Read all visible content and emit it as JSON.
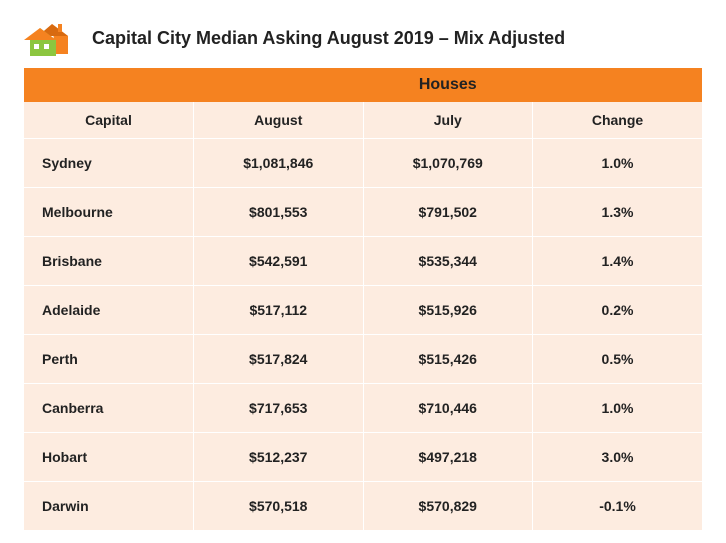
{
  "title": "Capital City Median Asking August 2019 – Mix Adjusted",
  "table": {
    "type": "table",
    "super_header": "Houses",
    "columns": [
      "Capital",
      "August",
      "July",
      "Change"
    ],
    "rows": [
      {
        "city": "Sydney",
        "aug": "$1,081,846",
        "jul": "$1,070,769",
        "chg": "1.0%"
      },
      {
        "city": "Melbourne",
        "aug": "$801,553",
        "jul": "$791,502",
        "chg": "1.3%"
      },
      {
        "city": "Brisbane",
        "aug": "$542,591",
        "jul": "$535,344",
        "chg": "1.4%"
      },
      {
        "city": "Adelaide",
        "aug": "$517,112",
        "jul": "$515,926",
        "chg": "0.2%"
      },
      {
        "city": "Perth",
        "aug": "$517,824",
        "jul": "$515,426",
        "chg": "0.5%"
      },
      {
        "city": "Canberra",
        "aug": "$717,653",
        "jul": "$710,446",
        "chg": "1.0%"
      },
      {
        "city": "Hobart",
        "aug": "$512,237",
        "jul": "$497,218",
        "chg": "3.0%"
      },
      {
        "city": "Darwin",
        "aug": "$570,518",
        "jul": "$570,829",
        "chg": "-0.1%"
      }
    ],
    "colors": {
      "header_bg": "#f58220",
      "body_bg": "#fdece0",
      "text": "#222222",
      "grid": "#ffffff"
    },
    "font": {
      "family": "Arial",
      "title_size": 18,
      "header_size": 14,
      "cell_size": 14,
      "title_weight": 700,
      "cell_weight": 700
    }
  },
  "logo": {
    "roof_color": "#f58220",
    "house1_color": "#8cc63f",
    "house2_color": "#ffffff",
    "outline": "#f58220"
  }
}
